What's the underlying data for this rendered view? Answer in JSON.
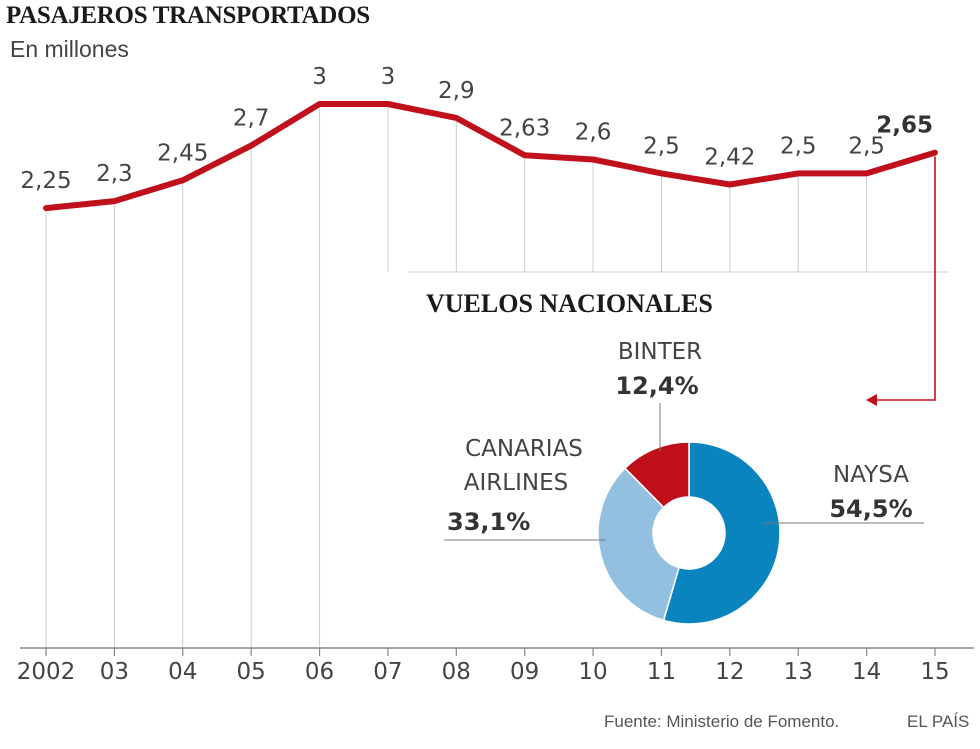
{
  "chart_data": [
    {
      "type": "line",
      "title": "PASAJEROS TRANSPORTADOS",
      "subtitle": "En millones",
      "categories": [
        "2002",
        "03",
        "04",
        "05",
        "06",
        "07",
        "08",
        "09",
        "10",
        "11",
        "12",
        "13",
        "14",
        "15"
      ],
      "values": [
        2.25,
        2.3,
        2.45,
        2.7,
        3,
        3,
        2.9,
        2.63,
        2.6,
        2.5,
        2.42,
        2.5,
        2.5,
        2.65
      ],
      "value_labels": [
        "2,25",
        "2,3",
        "2,45",
        "2,7",
        "3",
        "3",
        "2,9",
        "2,63",
        "2,6",
        "2,5",
        "2,42",
        "2,5",
        "2,5",
        "2,65"
      ],
      "grid": "vertical",
      "ylim": [
        -0.92,
        3.0
      ]
    },
    {
      "type": "pie",
      "title": "VUELOS NACIONALES",
      "slices": [
        {
          "name": "NAYSA",
          "pct_label": "54,5%",
          "value": 54.5,
          "color": "#0a84bf"
        },
        {
          "name": "CANARIAS AIRLINES",
          "name_lines": [
            "CANARIAS",
            "AIRLINES"
          ],
          "pct_label": "33,1%",
          "value": 33.1,
          "color": "#93c0e0"
        },
        {
          "name": "BINTER",
          "pct_label": "12,4%",
          "value": 12.4,
          "color": "#bf0f1a"
        }
      ]
    }
  ],
  "colors": {
    "line": "#c0101c",
    "grid": "#cccccc",
    "axis": "#888888"
  },
  "footer": {
    "source": "Fuente: Ministerio de Fomento.",
    "brand": "EL PAÍS"
  }
}
